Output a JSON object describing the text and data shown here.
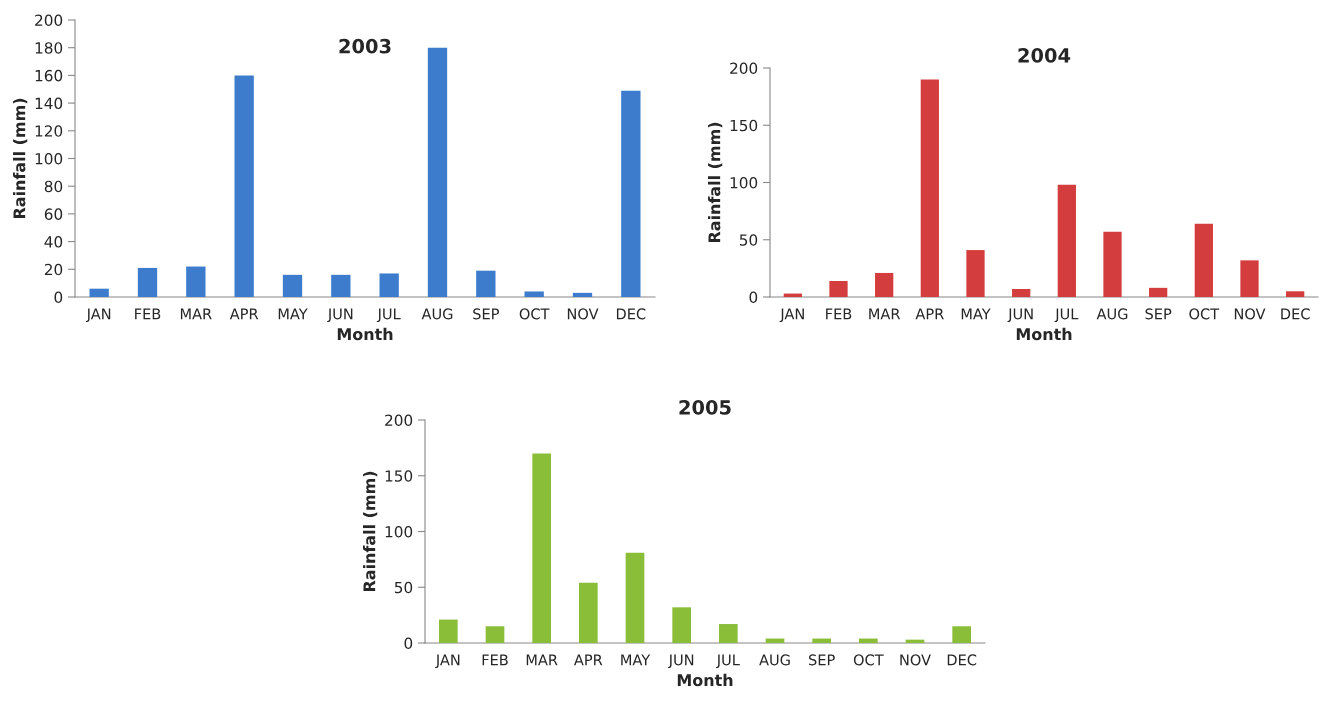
{
  "chart_data": [
    {
      "type": "bar",
      "title": "2003",
      "xlabel": "Month",
      "ylabel": "Rainfall (mm)",
      "categories": [
        "JAN",
        "FEB",
        "MAR",
        "APR",
        "MAY",
        "JUN",
        "JUL",
        "AUG",
        "SEP",
        "OCT",
        "NOV",
        "DEC"
      ],
      "values": [
        6,
        21,
        22,
        160,
        16,
        16,
        17,
        180,
        19,
        4,
        3,
        149
      ],
      "color": "#3d7ccc",
      "ylim": [
        0,
        200
      ],
      "yticks": [
        0,
        20,
        40,
        60,
        80,
        100,
        120,
        140,
        160,
        180,
        200
      ],
      "grid": false
    },
    {
      "type": "bar",
      "title": "2004",
      "xlabel": "Month",
      "ylabel": "Rainfall (mm)",
      "categories": [
        "JAN",
        "FEB",
        "MAR",
        "APR",
        "MAY",
        "JUN",
        "JUL",
        "AUG",
        "SEP",
        "OCT",
        "NOV",
        "DEC"
      ],
      "values": [
        3,
        14,
        21,
        190,
        41,
        7,
        98,
        57,
        8,
        64,
        32,
        5
      ],
      "color": "#d43d3d",
      "ylim": [
        0,
        200
      ],
      "yticks": [
        0,
        50,
        100,
        150,
        200
      ],
      "grid": false
    },
    {
      "type": "bar",
      "title": "2005",
      "xlabel": "Month",
      "ylabel": "Rainfall (mm)",
      "categories": [
        "JAN",
        "FEB",
        "MAR",
        "APR",
        "MAY",
        "JUN",
        "JUL",
        "AUG",
        "SEP",
        "OCT",
        "NOV",
        "DEC"
      ],
      "values": [
        21,
        15,
        170,
        54,
        81,
        32,
        17,
        4,
        4,
        4,
        3,
        15
      ],
      "color": "#8abd38",
      "ylim": [
        0,
        200
      ],
      "yticks": [
        0,
        50,
        100,
        150,
        200
      ],
      "grid": false
    }
  ]
}
